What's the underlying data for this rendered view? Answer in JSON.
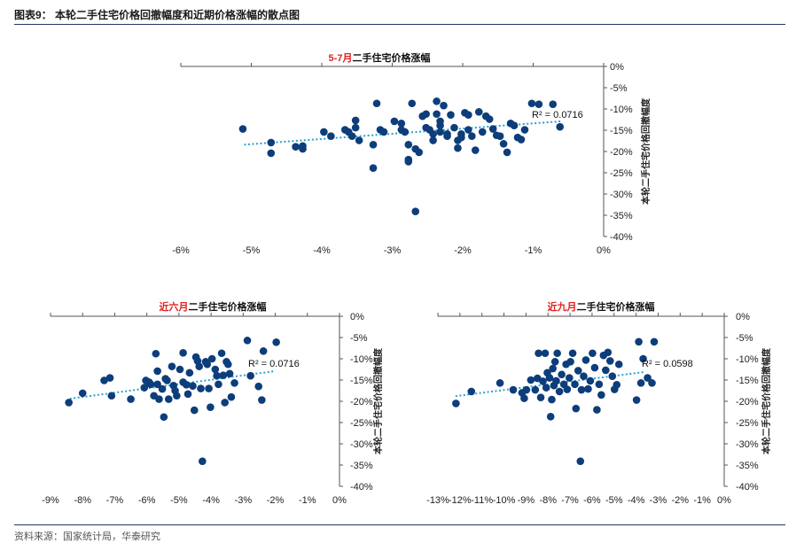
{
  "figure": {
    "title": "图表9：  本轮二手住宅价格回撤幅度和近期价格涨幅的散点图",
    "source": "资料来源：国家统计局，华泰研究"
  },
  "colors": {
    "points": "#0d3d7a",
    "trend": "#2aa0d4",
    "highlight": "#e02020",
    "rule": "#1f3864"
  },
  "chart_data": [
    {
      "type": "scatter",
      "title_highlight": "5-7月",
      "title_rest": "二手住宅价格涨幅",
      "ylabel": "本轮二手住宅价格回撤幅度",
      "r2_label": "R² = 0.0716",
      "x_ticks": [
        "-6%",
        "-5%",
        "-4%",
        "-3%",
        "-2%",
        "-1%",
        "0%"
      ],
      "y_ticks": [
        "0%",
        "-5%",
        "-10%",
        "-15%",
        "-20%",
        "-25%",
        "-30%",
        "-35%",
        "-40%"
      ],
      "xlim": [
        -0.06,
        0.0
      ],
      "ylim": [
        -0.4,
        0.0
      ],
      "trendline": [
        [
          -0.051,
          -0.184
        ],
        [
          -0.006,
          -0.129
        ]
      ],
      "points": [
        [
          -0.0512,
          -0.147
        ],
        [
          -0.0472,
          -0.179
        ],
        [
          -0.0472,
          -0.204
        ],
        [
          -0.0437,
          -0.189
        ],
        [
          -0.0427,
          -0.194
        ],
        [
          -0.0427,
          -0.187
        ],
        [
          -0.0397,
          -0.154
        ],
        [
          -0.0387,
          -0.164
        ],
        [
          -0.0367,
          -0.149
        ],
        [
          -0.0362,
          -0.154
        ],
        [
          -0.0357,
          -0.164
        ],
        [
          -0.0352,
          -0.127
        ],
        [
          -0.0352,
          -0.144
        ],
        [
          -0.0347,
          -0.174
        ],
        [
          -0.0327,
          -0.184
        ],
        [
          -0.0327,
          -0.239
        ],
        [
          -0.0322,
          -0.087
        ],
        [
          -0.0317,
          -0.149
        ],
        [
          -0.0312,
          -0.154
        ],
        [
          -0.0297,
          -0.129
        ],
        [
          -0.0287,
          -0.134
        ],
        [
          -0.0287,
          -0.149
        ],
        [
          -0.0282,
          -0.154
        ],
        [
          -0.0277,
          -0.184
        ],
        [
          -0.0277,
          -0.219
        ],
        [
          -0.0277,
          -0.224
        ],
        [
          -0.0272,
          -0.087
        ],
        [
          -0.0267,
          -0.194
        ],
        [
          -0.0262,
          -0.202
        ],
        [
          -0.0257,
          -0.117
        ],
        [
          -0.0252,
          -0.144
        ],
        [
          -0.0247,
          -0.149
        ],
        [
          -0.0242,
          -0.159
        ],
        [
          -0.0242,
          -0.174
        ],
        [
          -0.0237,
          -0.082
        ],
        [
          -0.0237,
          -0.112
        ],
        [
          -0.0232,
          -0.129
        ],
        [
          -0.0232,
          -0.139
        ],
        [
          -0.0232,
          -0.154
        ],
        [
          -0.0227,
          -0.092
        ],
        [
          -0.0222,
          -0.159
        ],
        [
          -0.0222,
          -0.164
        ],
        [
          -0.0217,
          -0.114
        ],
        [
          -0.0212,
          -0.144
        ],
        [
          -0.0207,
          -0.174
        ],
        [
          -0.0207,
          -0.192
        ],
        [
          -0.0202,
          -0.159
        ],
        [
          -0.0202,
          -0.167
        ],
        [
          -0.0197,
          -0.109
        ],
        [
          -0.0192,
          -0.114
        ],
        [
          -0.0192,
          -0.149
        ],
        [
          -0.0187,
          -0.164
        ],
        [
          -0.0182,
          -0.197
        ],
        [
          -0.0177,
          -0.107
        ],
        [
          -0.0172,
          -0.154
        ],
        [
          -0.0167,
          -0.117
        ],
        [
          -0.0162,
          -0.124
        ],
        [
          -0.0157,
          -0.147
        ],
        [
          -0.0152,
          -0.162
        ],
        [
          -0.0147,
          -0.164
        ],
        [
          -0.0142,
          -0.182
        ],
        [
          -0.0137,
          -0.202
        ],
        [
          -0.0132,
          -0.134
        ],
        [
          -0.0127,
          -0.139
        ],
        [
          -0.0122,
          -0.167
        ],
        [
          -0.0117,
          -0.172
        ],
        [
          -0.0112,
          -0.149
        ],
        [
          -0.0102,
          -0.087
        ],
        [
          -0.0092,
          -0.089
        ],
        [
          -0.0072,
          -0.089
        ],
        [
          -0.0062,
          -0.142
        ],
        [
          -0.0252,
          -0.112
        ],
        [
          -0.0267,
          -0.341
        ]
      ]
    },
    {
      "type": "scatter",
      "title_highlight": "近六月",
      "title_rest": "二手住宅价格涨幅",
      "ylabel": "本轮二手住宅价格回撤幅度",
      "r2_label": "R² = 0.0716",
      "x_ticks": [
        "-9%",
        "-8%",
        "-7%",
        "-6%",
        "-5%",
        "-4%",
        "-3%",
        "-2%",
        "-1%",
        "0%"
      ],
      "y_ticks": [
        "0%",
        "-5%",
        "-10%",
        "-15%",
        "-20%",
        "-25%",
        "-30%",
        "-35%",
        "-40%"
      ],
      "xlim": [
        -0.09,
        0.0
      ],
      "ylim": [
        -0.4,
        0.0
      ],
      "trendline": [
        [
          -0.084,
          -0.194
        ],
        [
          -0.02,
          -0.129
        ]
      ],
      "points": [
        [
          -0.0843,
          -0.203
        ],
        [
          -0.08,
          -0.181
        ],
        [
          -0.0733,
          -0.151
        ],
        [
          -0.0715,
          -0.145
        ],
        [
          -0.071,
          -0.187
        ],
        [
          -0.065,
          -0.195
        ],
        [
          -0.0608,
          -0.168
        ],
        [
          -0.0603,
          -0.151
        ],
        [
          -0.0593,
          -0.155
        ],
        [
          -0.0588,
          -0.16
        ],
        [
          -0.0578,
          -0.187
        ],
        [
          -0.0572,
          -0.088
        ],
        [
          -0.0567,
          -0.129
        ],
        [
          -0.0567,
          -0.16
        ],
        [
          -0.0562,
          -0.195
        ],
        [
          -0.0552,
          -0.171
        ],
        [
          -0.0547,
          -0.237
        ],
        [
          -0.0542,
          -0.147
        ],
        [
          -0.0537,
          -0.151
        ],
        [
          -0.0532,
          -0.195
        ],
        [
          -0.0522,
          -0.118
        ],
        [
          -0.0517,
          -0.163
        ],
        [
          -0.0512,
          -0.175
        ],
        [
          -0.0507,
          -0.187
        ],
        [
          -0.0497,
          -0.125
        ],
        [
          -0.0487,
          -0.086
        ],
        [
          -0.0487,
          -0.155
        ],
        [
          -0.0477,
          -0.161
        ],
        [
          -0.0472,
          -0.183
        ],
        [
          -0.0467,
          -0.133
        ],
        [
          -0.0457,
          -0.164
        ],
        [
          -0.0452,
          -0.221
        ],
        [
          -0.0447,
          -0.096
        ],
        [
          -0.0442,
          -0.105
        ],
        [
          -0.0437,
          -0.118
        ],
        [
          -0.0432,
          -0.17
        ],
        [
          -0.0427,
          -0.341
        ],
        [
          -0.0417,
          -0.107
        ],
        [
          -0.0412,
          -0.113
        ],
        [
          -0.0407,
          -0.17
        ],
        [
          -0.0402,
          -0.214
        ],
        [
          -0.0397,
          -0.1
        ],
        [
          -0.0387,
          -0.125
        ],
        [
          -0.0382,
          -0.14
        ],
        [
          -0.0377,
          -0.16
        ],
        [
          -0.0367,
          -0.087
        ],
        [
          -0.0362,
          -0.139
        ],
        [
          -0.0357,
          -0.203
        ],
        [
          -0.0352,
          -0.107
        ],
        [
          -0.0347,
          -0.113
        ],
        [
          -0.0342,
          -0.135
        ],
        [
          -0.0337,
          -0.19
        ],
        [
          -0.0327,
          -0.157
        ],
        [
          -0.0287,
          -0.057
        ],
        [
          -0.0277,
          -0.14
        ],
        [
          -0.0252,
          -0.165
        ],
        [
          -0.0242,
          -0.197
        ],
        [
          -0.0237,
          -0.082
        ],
        [
          -0.0197,
          -0.061
        ]
      ]
    },
    {
      "type": "scatter",
      "title_highlight": "近九月",
      "title_rest": "二手住宅价格涨幅",
      "ylabel": "本轮二手住宅价格回撤幅度",
      "r2_label": "R² = 0.0598",
      "x_ticks": [
        "-13%",
        "-12%",
        "-11%",
        "-10%",
        "-9%",
        "-8%",
        "-7%",
        "-6%",
        "-5%",
        "-4%",
        "-3%",
        "-2%",
        "-1%",
        "0%"
      ],
      "y_ticks": [
        "0%",
        "-5%",
        "-10%",
        "-15%",
        "-20%",
        "-25%",
        "-30%",
        "-35%",
        "-40%"
      ],
      "xlim": [
        -0.13,
        0.0
      ],
      "ylim": [
        -0.4,
        0.0
      ],
      "trendline": [
        [
          -0.122,
          -0.188
        ],
        [
          -0.036,
          -0.131
        ]
      ],
      "points": [
        [
          -0.1218,
          -0.205
        ],
        [
          -0.1148,
          -0.177
        ],
        [
          -0.1018,
          -0.157
        ],
        [
          -0.0958,
          -0.173
        ],
        [
          -0.0918,
          -0.18
        ],
        [
          -0.0908,
          -0.193
        ],
        [
          -0.0898,
          -0.173
        ],
        [
          -0.0878,
          -0.15
        ],
        [
          -0.0858,
          -0.173
        ],
        [
          -0.0848,
          -0.146
        ],
        [
          -0.0843,
          -0.087
        ],
        [
          -0.0833,
          -0.191
        ],
        [
          -0.0823,
          -0.153
        ],
        [
          -0.0813,
          -0.087
        ],
        [
          -0.0808,
          -0.168
        ],
        [
          -0.0803,
          -0.133
        ],
        [
          -0.0793,
          -0.145
        ],
        [
          -0.0788,
          -0.236
        ],
        [
          -0.0783,
          -0.196
        ],
        [
          -0.0778,
          -0.123
        ],
        [
          -0.0773,
          -0.163
        ],
        [
          -0.0768,
          -0.107
        ],
        [
          -0.0763,
          -0.152
        ],
        [
          -0.0758,
          -0.087
        ],
        [
          -0.0748,
          -0.177
        ],
        [
          -0.0738,
          -0.137
        ],
        [
          -0.0728,
          -0.16
        ],
        [
          -0.0718,
          -0.113
        ],
        [
          -0.0713,
          -0.172
        ],
        [
          -0.0703,
          -0.145
        ],
        [
          -0.0698,
          -0.107
        ],
        [
          -0.0688,
          -0.087
        ],
        [
          -0.0678,
          -0.16
        ],
        [
          -0.0673,
          -0.217
        ],
        [
          -0.0663,
          -0.128
        ],
        [
          -0.0653,
          -0.341
        ],
        [
          -0.0648,
          -0.173
        ],
        [
          -0.0638,
          -0.141
        ],
        [
          -0.0628,
          -0.103
        ],
        [
          -0.0618,
          -0.171
        ],
        [
          -0.0608,
          -0.152
        ],
        [
          -0.0598,
          -0.087
        ],
        [
          -0.0588,
          -0.121
        ],
        [
          -0.0578,
          -0.22
        ],
        [
          -0.0568,
          -0.16
        ],
        [
          -0.0558,
          -0.185
        ],
        [
          -0.0548,
          -0.092
        ],
        [
          -0.0538,
          -0.127
        ],
        [
          -0.0528,
          -0.085
        ],
        [
          -0.0518,
          -0.105
        ],
        [
          -0.0508,
          -0.141
        ],
        [
          -0.0498,
          -0.172
        ],
        [
          -0.0488,
          -0.161
        ],
        [
          -0.0478,
          -0.113
        ],
        [
          -0.0398,
          -0.197
        ],
        [
          -0.0388,
          -0.06
        ],
        [
          -0.0378,
          -0.157
        ],
        [
          -0.0368,
          -0.1
        ],
        [
          -0.0348,
          -0.145
        ],
        [
          -0.0328,
          -0.157
        ],
        [
          -0.0318,
          -0.06
        ]
      ]
    }
  ]
}
